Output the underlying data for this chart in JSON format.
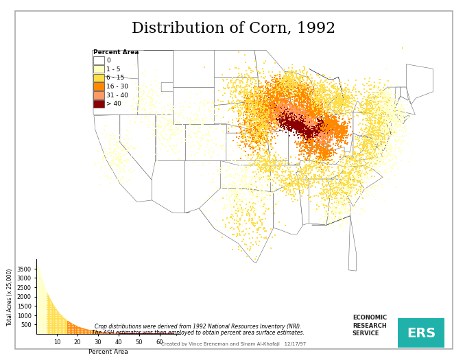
{
  "title": "Distribution of Corn, 1992",
  "title_fontsize": 16,
  "legend_labels": [
    "0",
    "1 - 5",
    "6 - 15",
    "16 - 30",
    "31 - 40",
    "> 40"
  ],
  "legend_colors": [
    "#ffffff",
    "#ffffc0",
    "#ffdd44",
    "#ff8800",
    "#ff9966",
    "#8b0000"
  ],
  "legend_title": "Percent Area",
  "hist_xlabel": "Percent Area",
  "hist_ylabel": "Total Acres (x 25,000)",
  "hist_yticks": [
    500,
    1000,
    1500,
    2000,
    2500,
    3000,
    3500
  ],
  "hist_xticks": [
    10,
    20,
    30,
    40,
    50,
    60
  ],
  "caption_line1": "Crop distributions were derived from 1992 National Resources Inventory (NRI).",
  "caption_line2": "The ASH estimator was then employed to obtain percent area surface estimates.",
  "credit": "Created by Vince Breneman and Sinam Al-Khafaji   12/17/97",
  "ers_text": "ECONOMIC\nRESEARCH\nSERVICE",
  "ers_color": "#20b2aa",
  "map_xlim": [
    -125,
    -65
  ],
  "map_ylim": [
    24,
    50
  ]
}
